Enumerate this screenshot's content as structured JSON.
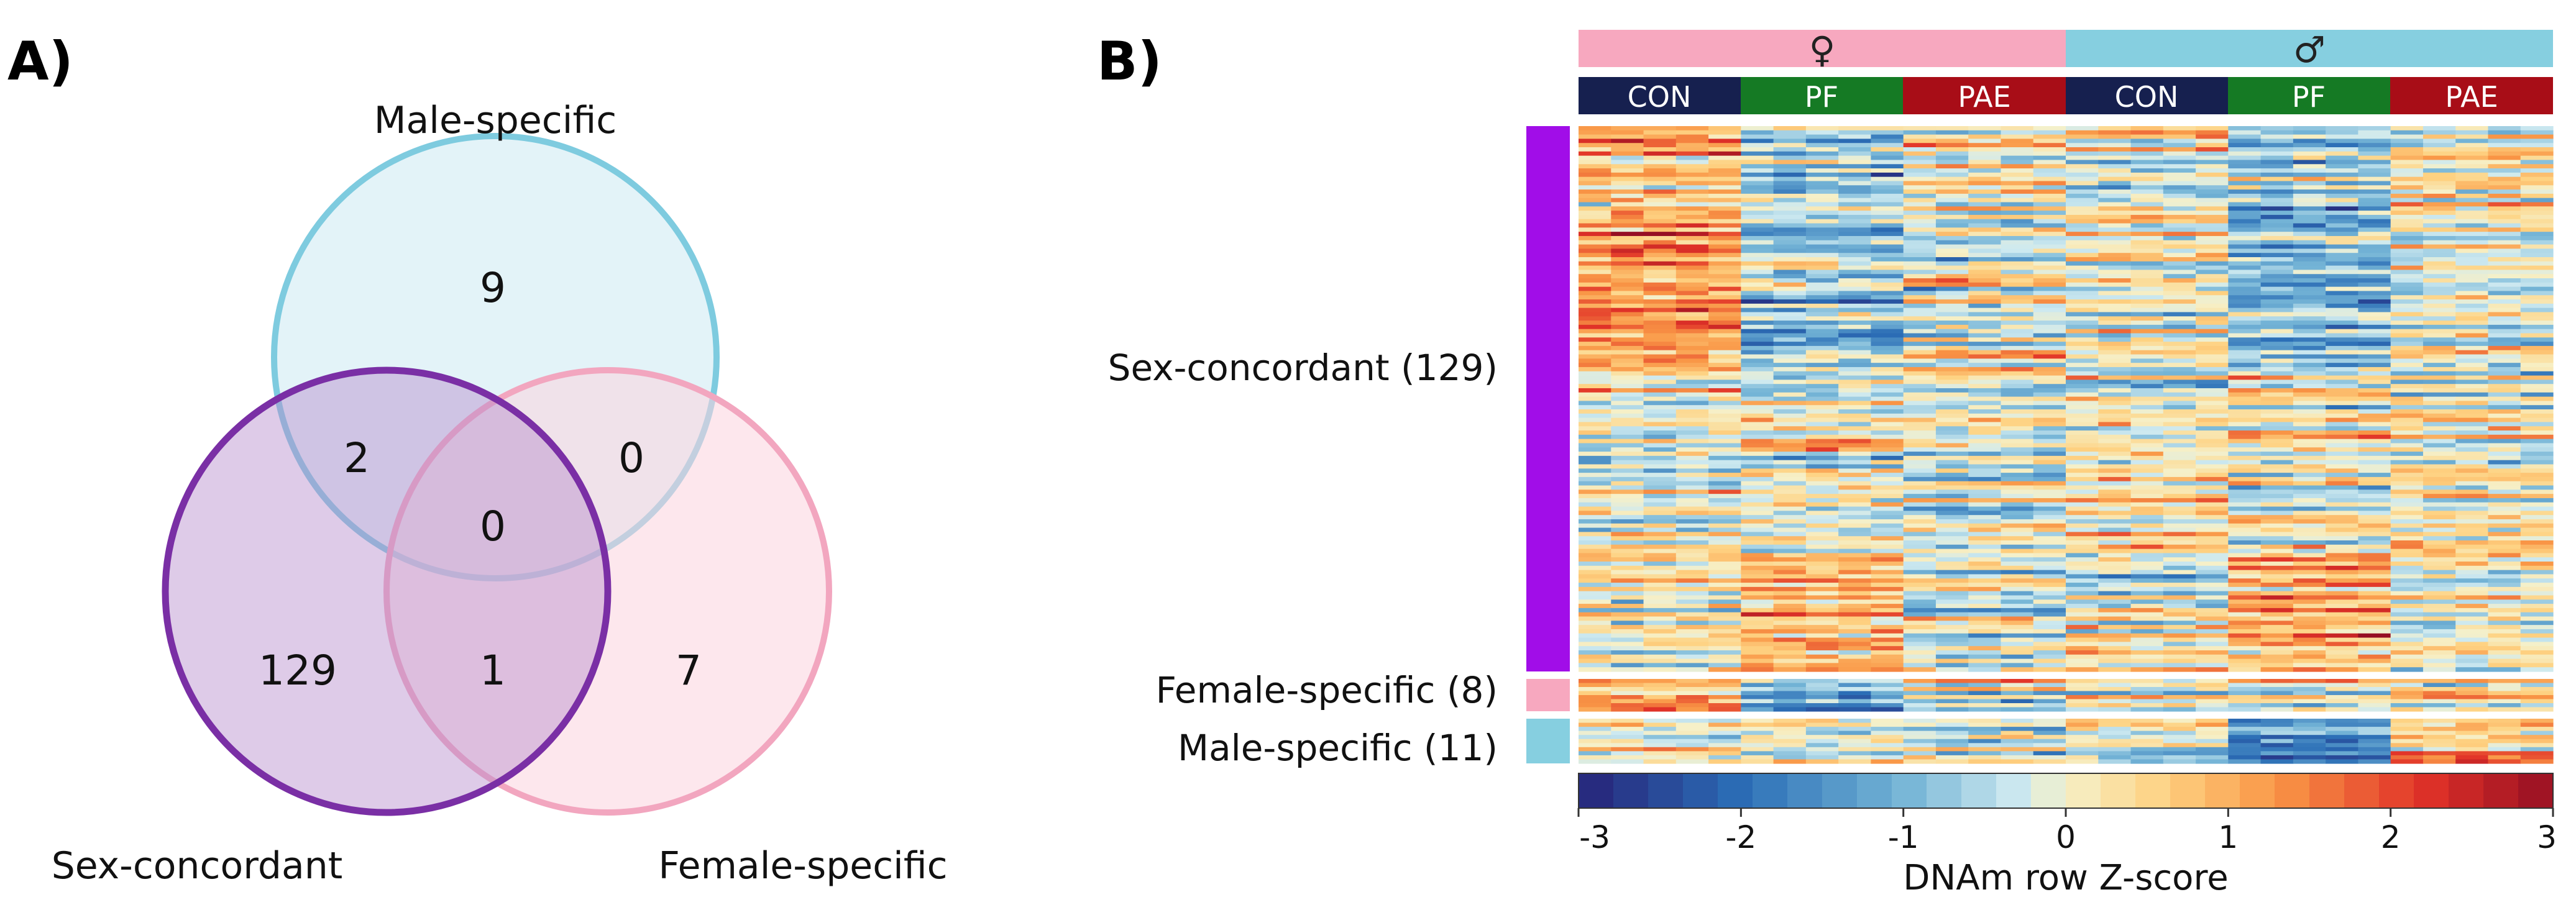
{
  "panel_a": {
    "label": "A)",
    "set_labels": {
      "male": "Male-specific",
      "sex_concordant": "Sex-concordant",
      "female": "Female-specific"
    },
    "counts": {
      "male_only": "9",
      "female_only": "7",
      "concordant_only": "129",
      "male_concordant": "2",
      "male_female": "0",
      "concordant_female": "1",
      "all_three": "0"
    },
    "colors": {
      "male": "#7ecbdf",
      "male_fill": "#d9eff5",
      "concordant": "#7a2fa5",
      "concordant_fill": "#b68ccc",
      "female": "#f2a6bf",
      "female_fill": "#fbdbe5"
    }
  },
  "panel_b": {
    "label": "B)",
    "sex_labels": [
      "♀",
      "♂"
    ],
    "group_labels": [
      "CON",
      "PF",
      "PAE",
      "CON",
      "PF",
      "PAE"
    ],
    "row_group_labels": [
      "Sex-concordant (129)",
      "Female-specific (8)",
      "Male-specific (11)"
    ],
    "colorbar_ticks": [
      "-3",
      "-2",
      "-1",
      "0",
      "1",
      "2",
      "3"
    ],
    "colorbar_title": "DNAm row Z-score",
    "colors": {
      "female": "#f7a8bf",
      "male": "#86cfe0",
      "con": "#16204f",
      "pf": "#157a24",
      "pae": "#a80d17",
      "concordant_bar": "#a10de8",
      "female_bar": "#f7a8bf",
      "male_bar": "#86cfe0"
    }
  },
  "chart_data": [
    {
      "type": "venn",
      "sets": [
        "Male-specific",
        "Sex-concordant",
        "Female-specific"
      ],
      "regions": [
        {
          "sets": [
            "Male-specific"
          ],
          "value": 9
        },
        {
          "sets": [
            "Female-specific"
          ],
          "value": 7
        },
        {
          "sets": [
            "Sex-concordant"
          ],
          "value": 129
        },
        {
          "sets": [
            "Male-specific",
            "Sex-concordant"
          ],
          "value": 2
        },
        {
          "sets": [
            "Male-specific",
            "Female-specific"
          ],
          "value": 0
        },
        {
          "sets": [
            "Sex-concordant",
            "Female-specific"
          ],
          "value": 1
        },
        {
          "sets": [
            "Male-specific",
            "Sex-concordant",
            "Female-specific"
          ],
          "value": 0
        }
      ]
    },
    {
      "type": "heatmap",
      "title": "",
      "column_annotations": {
        "sex": [
          "♀",
          "♂"
        ],
        "groups": [
          "CON",
          "PF",
          "PAE",
          "CON",
          "PF",
          "PAE"
        ],
        "samples_per_group": 5
      },
      "row_groups": [
        {
          "name": "Sex-concordant",
          "count": 129
        },
        {
          "name": "Female-specific",
          "count": 8
        },
        {
          "name": "Male-specific",
          "count": 11
        }
      ],
      "colorbar": {
        "label": "DNAm row Z-score",
        "range": [
          -3,
          3
        ],
        "ticks": [
          -3,
          -2,
          -1,
          0,
          1,
          2,
          3
        ]
      }
    }
  ]
}
